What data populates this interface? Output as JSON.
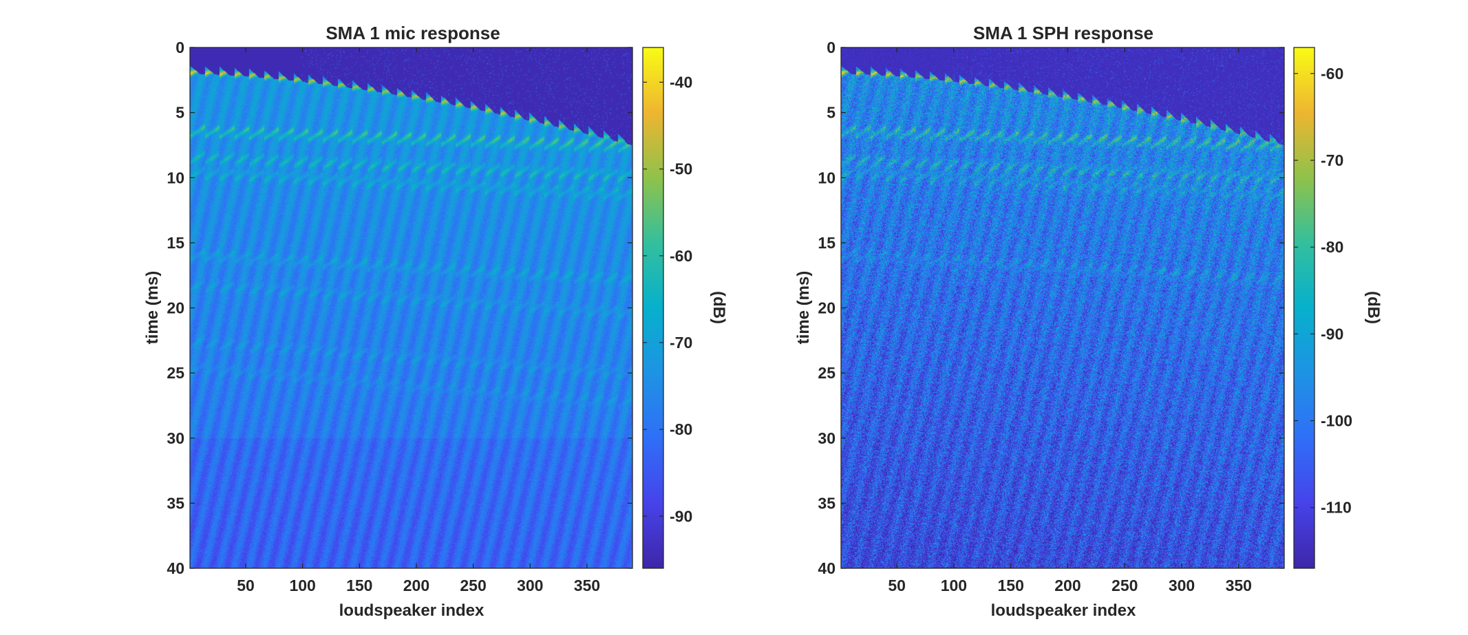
{
  "chart_data": [
    {
      "type": "heatmap",
      "title": "SMA 1 mic response",
      "xlabel": "loudspeaker index",
      "ylabel": "time (ms)",
      "colorbar_label": "(dB)",
      "xlim": [
        1,
        390
      ],
      "ylim": [
        0,
        40
      ],
      "y_reversed": true,
      "xticks": [
        50,
        100,
        150,
        200,
        250,
        300,
        350
      ],
      "yticks": [
        0,
        5,
        10,
        15,
        20,
        25,
        30,
        35,
        40
      ],
      "clim": [
        -96,
        -36
      ],
      "colorbar_ticks": [
        -40,
        -50,
        -60,
        -70,
        -80,
        -90
      ],
      "colormap": "parula",
      "grid": false,
      "noise": "low",
      "direct_arrival_ms": {
        "start": 2.0,
        "end": 7.5
      },
      "reflection_bands_ms": [
        6.8,
        8.8,
        10.0,
        16.3,
        18.6,
        23.0,
        25.0
      ],
      "floor_db": -80
    },
    {
      "type": "heatmap",
      "title": "SMA 1 SPH response",
      "xlabel": "loudspeaker index",
      "ylabel": "time (ms)",
      "colorbar_label": "(dB)",
      "xlim": [
        1,
        390
      ],
      "ylim": [
        0,
        40
      ],
      "y_reversed": true,
      "xticks": [
        50,
        100,
        150,
        200,
        250,
        300,
        350
      ],
      "yticks": [
        0,
        5,
        10,
        15,
        20,
        25,
        30,
        35,
        40
      ],
      "clim": [
        -117,
        -57
      ],
      "colorbar_ticks": [
        -60,
        -70,
        -80,
        -90,
        -100,
        -110
      ],
      "colormap": "parula",
      "grid": false,
      "noise": "high",
      "direct_arrival_ms": {
        "start": 2.0,
        "end": 7.5
      },
      "reflection_bands_ms": [
        6.8,
        9.0,
        10.0,
        16.3
      ],
      "floor_db": -103
    }
  ]
}
